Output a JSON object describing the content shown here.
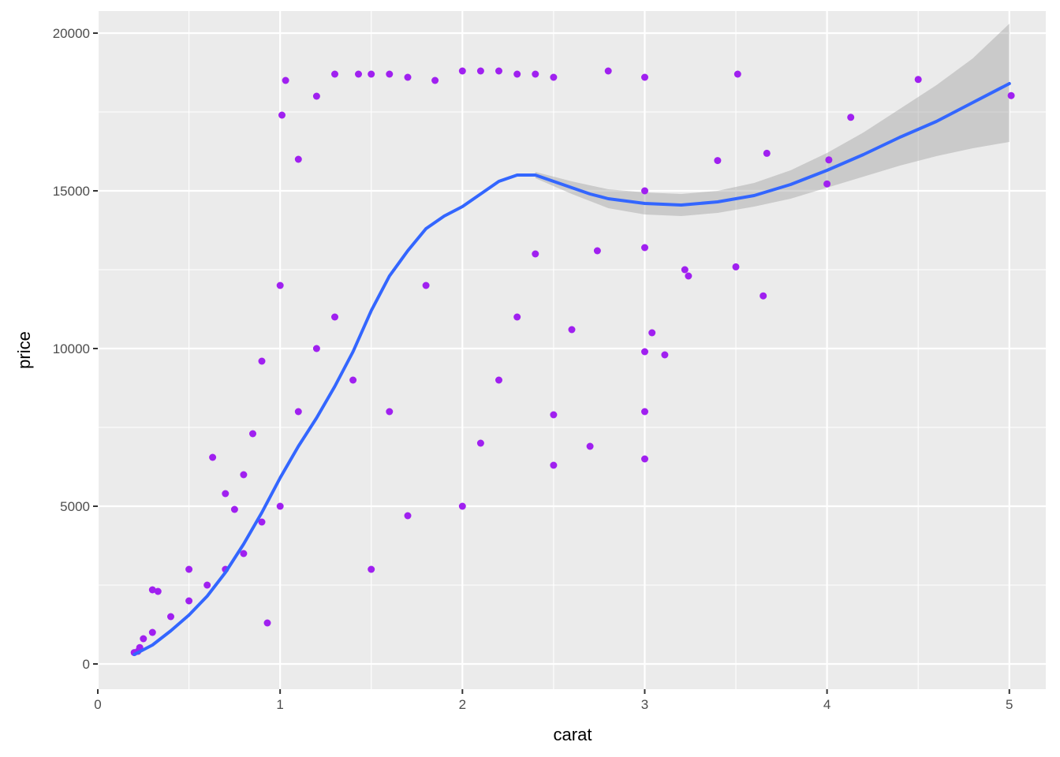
{
  "chart_data": {
    "type": "scatter",
    "title": "",
    "xlabel": "carat",
    "ylabel": "price",
    "xlim": [
      0,
      5.2
    ],
    "ylim": [
      -800,
      20700
    ],
    "x_ticks": [
      0,
      1,
      2,
      3,
      4,
      5
    ],
    "x_tick_labels": [
      "0",
      "1",
      "2",
      "3",
      "4",
      "5"
    ],
    "y_ticks": [
      0,
      5000,
      10000,
      15000,
      20000
    ],
    "y_tick_labels": [
      "0",
      "5000",
      "10000",
      "15000",
      "20000"
    ],
    "grid": true,
    "legend": "none",
    "colors": {
      "panel_background": "#ebebeb",
      "grid_major": "#ffffff",
      "points": "#a020f0",
      "smooth_line": "#3366ff",
      "confidence_band": "#999999"
    },
    "series": [
      {
        "type": "scatter",
        "points": [
          [
            0.2,
            360
          ],
          [
            0.22,
            400
          ],
          [
            0.23,
            520
          ],
          [
            0.25,
            800
          ],
          [
            0.3,
            1000
          ],
          [
            0.3,
            2350
          ],
          [
            0.33,
            2300
          ],
          [
            0.4,
            1500
          ],
          [
            0.5,
            2000
          ],
          [
            0.5,
            3000
          ],
          [
            0.6,
            2500
          ],
          [
            0.63,
            6550
          ],
          [
            0.7,
            3000
          ],
          [
            0.7,
            5400
          ],
          [
            0.75,
            4900
          ],
          [
            0.8,
            3500
          ],
          [
            0.8,
            6000
          ],
          [
            0.85,
            7300
          ],
          [
            0.9,
            4500
          ],
          [
            0.9,
            9600
          ],
          [
            0.93,
            1300
          ],
          [
            1.0,
            5000
          ],
          [
            1.0,
            12000
          ],
          [
            1.01,
            17400
          ],
          [
            1.03,
            18500
          ],
          [
            1.1,
            8000
          ],
          [
            1.1,
            16000
          ],
          [
            1.2,
            10000
          ],
          [
            1.2,
            18000
          ],
          [
            1.3,
            11000
          ],
          [
            1.3,
            18700
          ],
          [
            1.4,
            9000
          ],
          [
            1.43,
            18700
          ],
          [
            1.5,
            3000
          ],
          [
            1.5,
            18700
          ],
          [
            1.6,
            8000
          ],
          [
            1.6,
            18700
          ],
          [
            1.7,
            4700
          ],
          [
            1.7,
            18600
          ],
          [
            1.8,
            12000
          ],
          [
            1.85,
            18500
          ],
          [
            2.0,
            5000
          ],
          [
            2.0,
            18800
          ],
          [
            2.1,
            7000
          ],
          [
            2.1,
            18800
          ],
          [
            2.2,
            9000
          ],
          [
            2.2,
            18800
          ],
          [
            2.3,
            11000
          ],
          [
            2.3,
            18700
          ],
          [
            2.4,
            13000
          ],
          [
            2.4,
            18700
          ],
          [
            2.5,
            6300
          ],
          [
            2.5,
            7900
          ],
          [
            2.5,
            18600
          ],
          [
            2.6,
            10600
          ],
          [
            2.7,
            6900
          ],
          [
            2.74,
            13100
          ],
          [
            2.8,
            18800
          ],
          [
            3.0,
            6500
          ],
          [
            3.0,
            8000
          ],
          [
            3.0,
            9900
          ],
          [
            3.0,
            13200
          ],
          [
            3.0,
            15000
          ],
          [
            3.0,
            18600
          ],
          [
            3.04,
            10500
          ],
          [
            3.11,
            9800
          ],
          [
            3.22,
            12500
          ],
          [
            3.24,
            12300
          ],
          [
            3.4,
            15960
          ],
          [
            3.5,
            12590
          ],
          [
            3.51,
            18700
          ],
          [
            3.65,
            11670
          ],
          [
            3.67,
            16190
          ],
          [
            4.0,
            15220
          ],
          [
            4.01,
            15980
          ],
          [
            4.13,
            17330
          ],
          [
            4.5,
            18530
          ],
          [
            5.01,
            18020
          ]
        ]
      },
      {
        "type": "line",
        "name": "",
        "x": [
          0.2,
          0.3,
          0.4,
          0.5,
          0.6,
          0.7,
          0.8,
          0.9,
          1.0,
          1.1,
          1.2,
          1.3,
          1.4,
          1.5,
          1.6,
          1.7,
          1.8,
          1.9,
          2.0,
          2.1,
          2.2,
          2.3,
          2.4,
          2.5,
          2.6,
          2.7,
          2.8,
          3.0,
          3.2,
          3.4,
          3.6,
          3.8,
          4.0,
          4.2,
          4.4,
          4.6,
          4.8,
          5.0
        ],
        "y": [
          300,
          600,
          1050,
          1550,
          2150,
          2900,
          3800,
          4800,
          5900,
          6900,
          7800,
          8800,
          9900,
          11200,
          12300,
          13100,
          13800,
          14200,
          14500,
          14900,
          15300,
          15500,
          15500,
          15300,
          15100,
          14900,
          14750,
          14600,
          14550,
          14650,
          14850,
          15200,
          15650,
          16150,
          16700,
          17200,
          17800,
          18400
        ]
      },
      {
        "type": "band",
        "x": [
          2.4,
          2.6,
          2.8,
          3.0,
          3.2,
          3.4,
          3.6,
          3.8,
          4.0,
          4.2,
          4.4,
          4.6,
          4.8,
          5.0
        ],
        "y_low": [
          15400,
          14900,
          14450,
          14250,
          14200,
          14300,
          14500,
          14750,
          15100,
          15450,
          15800,
          16100,
          16350,
          16550
        ],
        "y_high": [
          15600,
          15300,
          15050,
          14950,
          14900,
          15000,
          15250,
          15650,
          16200,
          16850,
          17600,
          18350,
          19200,
          20300
        ]
      }
    ]
  }
}
